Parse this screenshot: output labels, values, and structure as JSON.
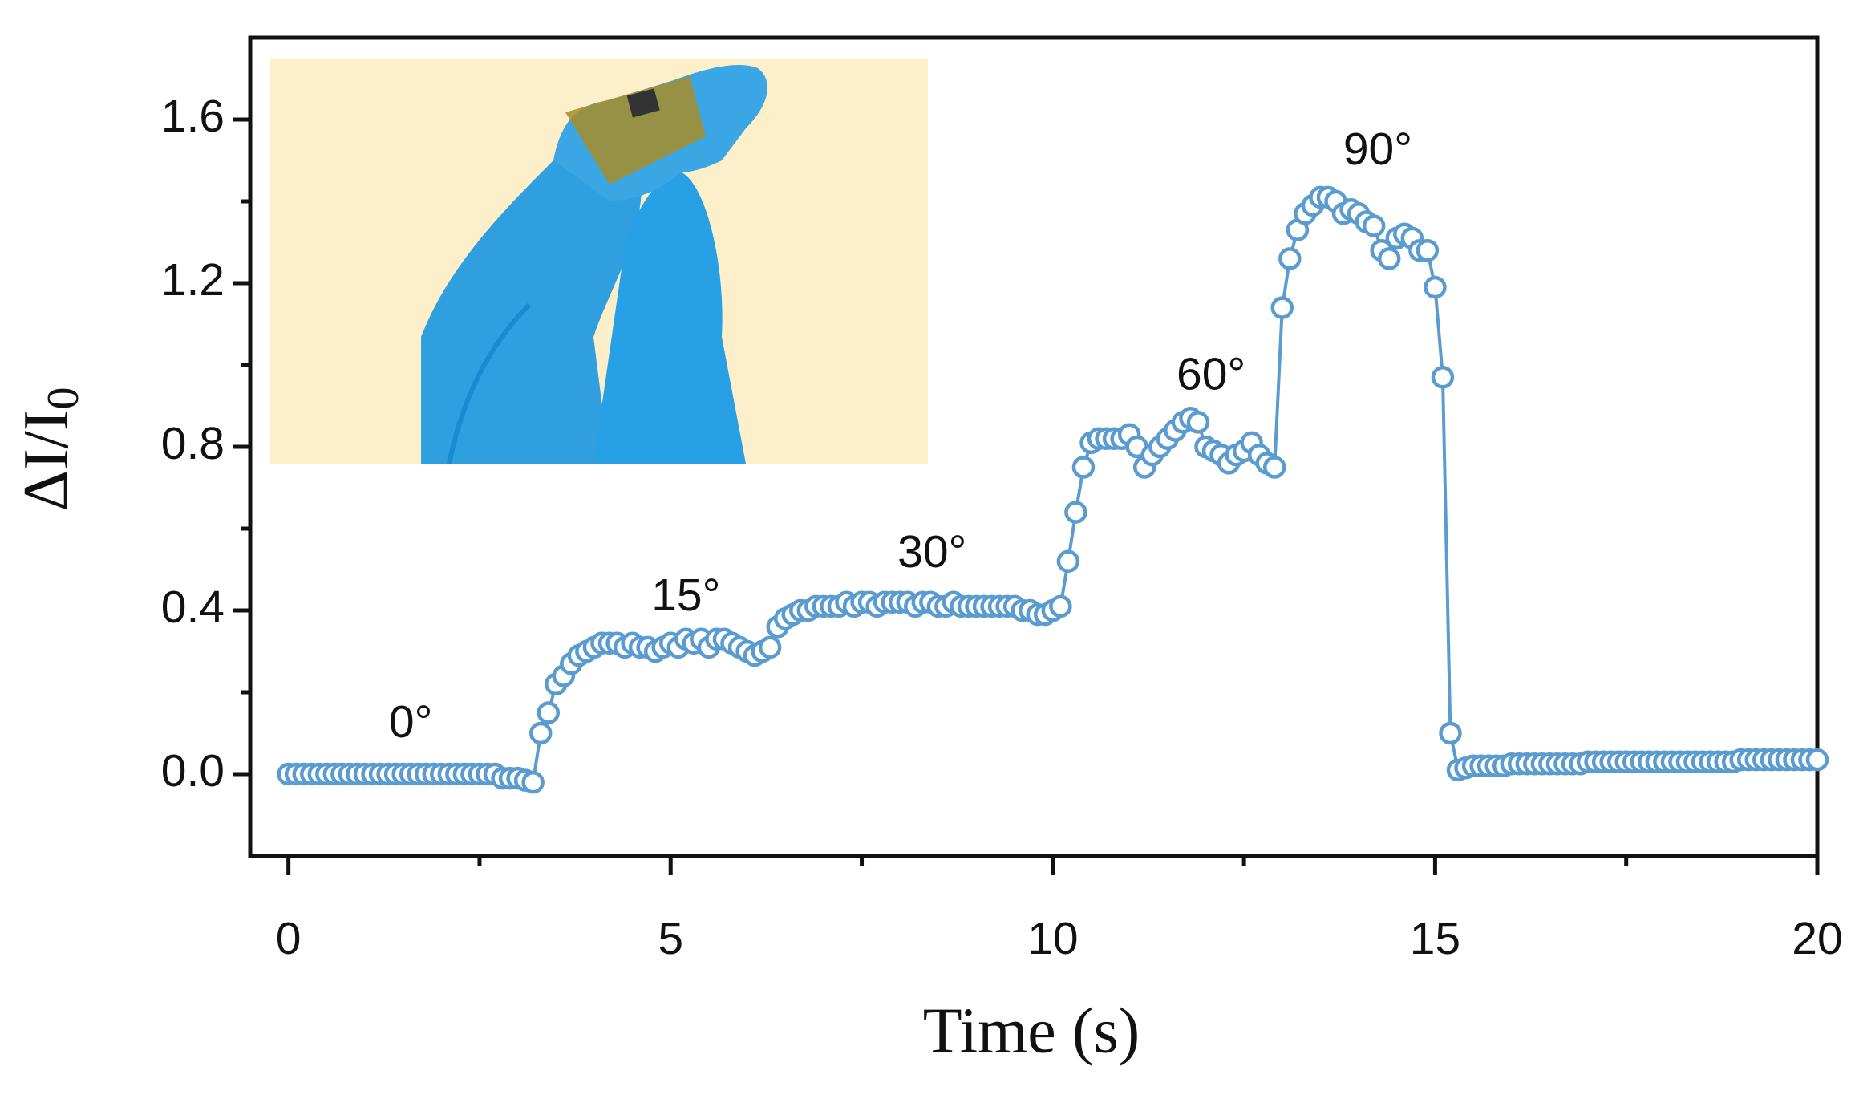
{
  "chart_data": {
    "type": "line",
    "xlabel": "Time (s)",
    "ylabel": {
      "text": "ΔI/I",
      "subscript": "0"
    },
    "xlim": [
      -0.5,
      20
    ],
    "ylim": [
      -0.2,
      1.8
    ],
    "xticks": [
      0,
      5,
      10,
      15,
      20
    ],
    "x_minor_ticks": [
      2.5,
      7.5,
      12.5,
      17.5
    ],
    "yticks": [
      {
        "value": 0,
        "label": "0.0"
      },
      {
        "value": 0.4,
        "label": "0.4"
      },
      {
        "value": 0.8,
        "label": "0.8"
      },
      {
        "value": 1.2,
        "label": "1.2"
      },
      {
        "value": 1.6,
        "label": "1.6"
      }
    ],
    "y_minor_ticks": [
      0.2,
      0.6,
      1.0,
      1.4
    ],
    "color": "#5a9bd0",
    "annotations": [
      "0°",
      "15°",
      "30°",
      "60°",
      "90°"
    ],
    "x": [
      0,
      0.1,
      0.2,
      0.3,
      0.4,
      0.5,
      0.6,
      0.7,
      0.8,
      0.9,
      1,
      1.1,
      1.2,
      1.3,
      1.4,
      1.5,
      1.6,
      1.7,
      1.8,
      1.9,
      2,
      2.1,
      2.2,
      2.3,
      2.4,
      2.5,
      2.6,
      2.7,
      2.8,
      2.9,
      3,
      3.1,
      3.2,
      3.3,
      3.4,
      3.5,
      3.6,
      3.7,
      3.8,
      3.9,
      4,
      4.1,
      4.2,
      4.3,
      4.4,
      4.5,
      4.6,
      4.7,
      4.8,
      4.9,
      5,
      5.1,
      5.2,
      5.3,
      5.4,
      5.5,
      5.6,
      5.7,
      5.8,
      5.9,
      6,
      6.1,
      6.2,
      6.3,
      6.4,
      6.5,
      6.6,
      6.7,
      6.8,
      6.9,
      7,
      7.1,
      7.2,
      7.3,
      7.4,
      7.5,
      7.6,
      7.7,
      7.8,
      7.9,
      8,
      8.1,
      8.2,
      8.3,
      8.4,
      8.5,
      8.6,
      8.7,
      8.8,
      8.9,
      9,
      9.1,
      9.2,
      9.3,
      9.4,
      9.5,
      9.6,
      9.7,
      9.8,
      9.9,
      10,
      10.1,
      10.2,
      10.3,
      10.4,
      10.5,
      10.6,
      10.7,
      10.8,
      10.9,
      11,
      11.1,
      11.2,
      11.3,
      11.4,
      11.5,
      11.6,
      11.7,
      11.8,
      11.9,
      12,
      12.1,
      12.2,
      12.3,
      12.4,
      12.5,
      12.6,
      12.7,
      12.8,
      12.9,
      13,
      13.1,
      13.2,
      13.3,
      13.4,
      13.5,
      13.6,
      13.7,
      13.8,
      13.9,
      14,
      14.1,
      14.2,
      14.3,
      14.4,
      14.5,
      14.6,
      14.7,
      14.8,
      14.9,
      15,
      15.1,
      15.2,
      15.3,
      15.4,
      15.5,
      15.6,
      15.7,
      15.8,
      15.9,
      16,
      16.1,
      16.2,
      16.3,
      16.4,
      16.5,
      16.6,
      16.7,
      16.8,
      16.9,
      17,
      17.1,
      17.2,
      17.3,
      17.4,
      17.5,
      17.6,
      17.7,
      17.8,
      17.9,
      18,
      18.1,
      18.2,
      18.3,
      18.4,
      18.5,
      18.6,
      18.7,
      18.8,
      18.9,
      19,
      19.1,
      19.2,
      19.3,
      19.4,
      19.5,
      19.6,
      19.7,
      19.8,
      19.9,
      20
    ],
    "values": [
      0,
      0,
      0,
      0,
      0,
      0,
      0,
      0,
      0,
      0,
      0,
      0,
      0,
      0,
      0,
      0,
      0,
      0,
      0,
      0,
      0,
      0,
      0,
      0,
      0,
      0,
      0,
      0,
      -0.01,
      -0.01,
      -0.01,
      -0.015,
      -0.02,
      0.1,
      0.15,
      0.22,
      0.24,
      0.27,
      0.29,
      0.3,
      0.31,
      0.32,
      0.32,
      0.32,
      0.31,
      0.32,
      0.31,
      0.31,
      0.3,
      0.31,
      0.32,
      0.31,
      0.33,
      0.32,
      0.33,
      0.31,
      0.33,
      0.33,
      0.32,
      0.31,
      0.3,
      0.29,
      0.3,
      0.31,
      0.36,
      0.38,
      0.39,
      0.4,
      0.4,
      0.41,
      0.41,
      0.41,
      0.41,
      0.42,
      0.41,
      0.42,
      0.42,
      0.41,
      0.42,
      0.42,
      0.42,
      0.42,
      0.41,
      0.42,
      0.42,
      0.41,
      0.41,
      0.42,
      0.41,
      0.41,
      0.41,
      0.41,
      0.41,
      0.41,
      0.41,
      0.41,
      0.4,
      0.4,
      0.39,
      0.39,
      0.4,
      0.41,
      0.52,
      0.64,
      0.75,
      0.81,
      0.82,
      0.82,
      0.82,
      0.82,
      0.83,
      0.8,
      0.75,
      0.78,
      0.8,
      0.82,
      0.84,
      0.86,
      0.87,
      0.86,
      0.8,
      0.79,
      0.78,
      0.76,
      0.78,
      0.79,
      0.81,
      0.78,
      0.76,
      0.75,
      1.14,
      1.26,
      1.33,
      1.37,
      1.39,
      1.41,
      1.41,
      1.4,
      1.37,
      1.38,
      1.37,
      1.35,
      1.34,
      1.28,
      1.26,
      1.31,
      1.32,
      1.31,
      1.28,
      1.28,
      1.19,
      0.97,
      0.1,
      0.01,
      0.015,
      0.02,
      0.02,
      0.02,
      0.02,
      0.02,
      0.025,
      0.025,
      0.025,
      0.025,
      0.025,
      0.025,
      0.025,
      0.025,
      0.025,
      0.025,
      0.03,
      0.03,
      0.03,
      0.03,
      0.03,
      0.03,
      0.03,
      0.03,
      0.03,
      0.03,
      0.03,
      0.03,
      0.03,
      0.03,
      0.03,
      0.03,
      0.03,
      0.03,
      0.03,
      0.03,
      0.035,
      0.035,
      0.035,
      0.035,
      0.035,
      0.035,
      0.035,
      0.035,
      0.035,
      0.035,
      0.035
    ]
  }
}
